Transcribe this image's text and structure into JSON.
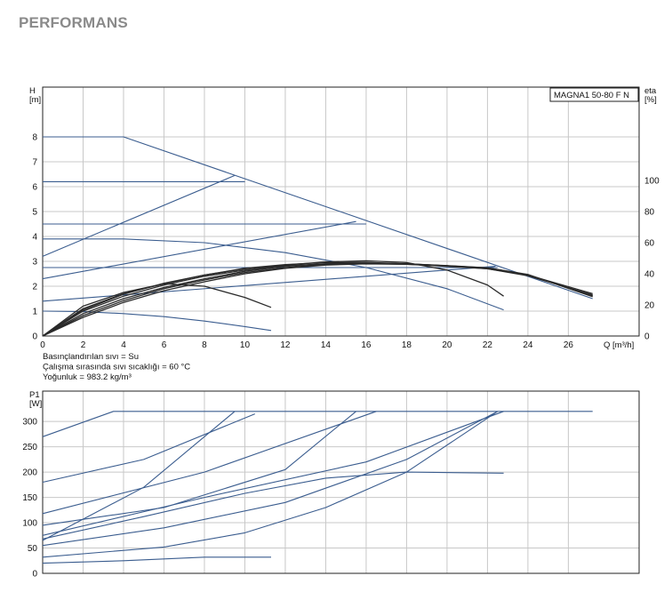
{
  "page": {
    "title": "PERFORMANS"
  },
  "colors": {
    "curve_blue": "#3b5d8f",
    "curve_black": "#2a2a2a",
    "grid": "#c8c8c8",
    "axis": "#222222"
  },
  "chart_data": [
    {
      "type": "line",
      "name": "head",
      "legend_box": "MAGNA1 50-80 F N",
      "ylabel": "H\n[m]",
      "ylabel_right": "eta\n[%]",
      "xlabel": "Q [m³/h]",
      "xlim": [
        0,
        29.5
      ],
      "ylim": [
        0,
        10
      ],
      "xticks": [
        0,
        2,
        4,
        6,
        8,
        10,
        12,
        14,
        16,
        18,
        20,
        22,
        24,
        26
      ],
      "yticks": [
        0,
        1,
        2,
        3,
        4,
        5,
        6,
        7,
        8
      ],
      "yticks_right": [
        0,
        20,
        40,
        60,
        80,
        100
      ],
      "eta_scale_max": 160,
      "grid": true,
      "notes": [
        "Basınçlandırılan sıvı = Su",
        "Çalışma sırasında sıvı sıcaklığı = 60 °C",
        "Yoğunluk = 983.2 kg/m³"
      ],
      "series": [
        {
          "color": "curve_blue",
          "points": [
            [
              0,
              8
            ],
            [
              4,
              8
            ],
            [
              27.2,
              1.5
            ]
          ]
        },
        {
          "color": "curve_blue",
          "points": [
            [
              0,
              6.2
            ],
            [
              10,
              6.2
            ]
          ]
        },
        {
          "color": "curve_blue",
          "points": [
            [
              0,
              4.5
            ],
            [
              16,
              4.5
            ]
          ]
        },
        {
          "color": "curve_blue",
          "points": [
            [
              0,
              2.75
            ],
            [
              22.5,
              2.75
            ]
          ]
        },
        {
          "color": "curve_blue",
          "points": [
            [
              0,
              3.2
            ],
            [
              9.5,
              6.45
            ]
          ]
        },
        {
          "color": "curve_blue",
          "points": [
            [
              0,
              2.3
            ],
            [
              15.5,
              4.6
            ]
          ]
        },
        {
          "color": "curve_blue",
          "points": [
            [
              0,
              1.4
            ],
            [
              22.4,
              2.8
            ]
          ]
        },
        {
          "color": "curve_blue",
          "points": [
            [
              0,
              3.9
            ],
            [
              4,
              3.9
            ],
            [
              8,
              3.75
            ],
            [
              12,
              3.35
            ],
            [
              16,
              2.75
            ],
            [
              20,
              1.9
            ],
            [
              22.8,
              1.05
            ]
          ]
        },
        {
          "color": "curve_blue",
          "points": [
            [
              0,
              1.0
            ],
            [
              2,
              0.98
            ],
            [
              4,
              0.9
            ],
            [
              6,
              0.78
            ],
            [
              8,
              0.6
            ],
            [
              10,
              0.38
            ],
            [
              11.3,
              0.22
            ]
          ]
        },
        {
          "color": "curve_black",
          "points": [
            [
              0,
              0
            ],
            [
              2,
              1.2
            ],
            [
              4,
              1.75
            ],
            [
              6,
              2.1
            ],
            [
              8,
              2.0
            ],
            [
              10,
              1.55
            ],
            [
              11.3,
              1.15
            ]
          ]
        },
        {
          "color": "curve_black",
          "points": [
            [
              0,
              0
            ],
            [
              2,
              1.1
            ],
            [
              4,
              1.7
            ],
            [
              6,
              2.1
            ],
            [
              8,
              2.45
            ],
            [
              10,
              2.7
            ],
            [
              12,
              2.85
            ],
            [
              14,
              2.98
            ],
            [
              16,
              3.02
            ],
            [
              18,
              2.95
            ],
            [
              20,
              2.65
            ],
            [
              22,
              2.05
            ],
            [
              22.8,
              1.6
            ]
          ]
        },
        {
          "color": "curve_black",
          "points": [
            [
              0,
              0
            ],
            [
              2,
              1.05
            ],
            [
              4,
              1.68
            ],
            [
              6,
              2.12
            ],
            [
              8,
              2.45
            ],
            [
              10,
              2.72
            ],
            [
              12,
              2.87
            ],
            [
              14,
              2.95
            ],
            [
              16,
              2.96
            ],
            [
              18,
              2.9
            ],
            [
              20,
              2.82
            ],
            [
              22,
              2.7
            ],
            [
              24,
              2.45
            ],
            [
              27.2,
              1.7
            ]
          ]
        },
        {
          "color": "curve_black",
          "points": [
            [
              0,
              0
            ],
            [
              2,
              1.0
            ],
            [
              4,
              1.6
            ],
            [
              6,
              2.05
            ],
            [
              8,
              2.4
            ],
            [
              10,
              2.65
            ],
            [
              12,
              2.82
            ],
            [
              14,
              2.9
            ],
            [
              16,
              2.92
            ],
            [
              18,
              2.88
            ],
            [
              20,
              2.8
            ],
            [
              22,
              2.7
            ],
            [
              24,
              2.42
            ],
            [
              27.2,
              1.65
            ]
          ]
        },
        {
          "color": "curve_black",
          "points": [
            [
              0,
              0
            ],
            [
              2,
              0.9
            ],
            [
              4,
              1.5
            ],
            [
              6,
              1.95
            ],
            [
              8,
              2.3
            ],
            [
              10,
              2.6
            ],
            [
              12,
              2.8
            ],
            [
              14,
              2.9
            ],
            [
              16,
              2.93
            ],
            [
              18,
              2.9
            ],
            [
              20,
              2.82
            ],
            [
              22,
              2.72
            ],
            [
              24,
              2.45
            ],
            [
              27.2,
              1.62
            ]
          ]
        },
        {
          "color": "curve_black",
          "points": [
            [
              0,
              0
            ],
            [
              2,
              0.82
            ],
            [
              4,
              1.42
            ],
            [
              6,
              1.9
            ],
            [
              8,
              2.25
            ],
            [
              10,
              2.55
            ],
            [
              12,
              2.75
            ],
            [
              14,
              2.87
            ],
            [
              16,
              2.92
            ],
            [
              18,
              2.9
            ],
            [
              20,
              2.83
            ],
            [
              22,
              2.74
            ],
            [
              24,
              2.46
            ],
            [
              27.2,
              1.6
            ]
          ]
        },
        {
          "color": "curve_black",
          "points": [
            [
              0,
              0
            ],
            [
              2,
              0.75
            ],
            [
              4,
              1.35
            ],
            [
              6,
              1.82
            ],
            [
              8,
              2.18
            ],
            [
              10,
              2.5
            ],
            [
              12,
              2.72
            ],
            [
              14,
              2.85
            ],
            [
              16,
              2.9
            ],
            [
              18,
              2.88
            ],
            [
              20,
              2.82
            ],
            [
              22,
              2.74
            ],
            [
              24,
              2.47
            ],
            [
              27.2,
              1.58
            ]
          ]
        }
      ]
    },
    {
      "type": "line",
      "name": "power",
      "ylabel": "P1\n[W]",
      "xlim": [
        0,
        29.5
      ],
      "ylim": [
        0,
        360
      ],
      "yticks": [
        0,
        50,
        100,
        150,
        200,
        250,
        300
      ],
      "grid": true,
      "series": [
        {
          "color": "curve_blue",
          "points": [
            [
              0,
              270
            ],
            [
              3.5,
              320
            ],
            [
              27.2,
              320
            ]
          ]
        },
        {
          "color": "curve_blue",
          "points": [
            [
              0,
              180
            ],
            [
              5,
              225
            ],
            [
              10.5,
              315
            ]
          ]
        },
        {
          "color": "curve_blue",
          "points": [
            [
              0,
              65
            ],
            [
              5,
              170
            ],
            [
              9.5,
              320
            ]
          ]
        },
        {
          "color": "curve_blue",
          "points": [
            [
              0,
              118
            ],
            [
              8,
              200
            ],
            [
              16.5,
              320
            ]
          ]
        },
        {
          "color": "curve_blue",
          "points": [
            [
              0,
              95
            ],
            [
              6,
              130
            ],
            [
              12,
              205
            ],
            [
              15.5,
              320
            ]
          ]
        },
        {
          "color": "curve_blue",
          "points": [
            [
              0,
              75
            ],
            [
              8,
              150
            ],
            [
              16,
              220
            ],
            [
              22.8,
              320
            ]
          ]
        },
        {
          "color": "curve_blue",
          "points": [
            [
              0,
              55
            ],
            [
              6,
              90
            ],
            [
              12,
              140
            ],
            [
              18,
              225
            ],
            [
              22.5,
              320
            ]
          ]
        },
        {
          "color": "curve_blue",
          "points": [
            [
              0,
              32
            ],
            [
              6,
              52
            ],
            [
              10,
              80
            ],
            [
              14,
              130
            ],
            [
              18,
              200
            ],
            [
              22.5,
              320
            ]
          ]
        },
        {
          "color": "curve_blue",
          "points": [
            [
              0,
              68
            ],
            [
              5,
              112
            ],
            [
              10,
              158
            ],
            [
              14,
              188
            ],
            [
              18,
              200
            ],
            [
              22.8,
              198
            ]
          ]
        },
        {
          "color": "curve_blue",
          "points": [
            [
              0,
              20
            ],
            [
              4,
              25
            ],
            [
              8,
              32
            ],
            [
              11.3,
              32
            ]
          ]
        }
      ]
    }
  ]
}
